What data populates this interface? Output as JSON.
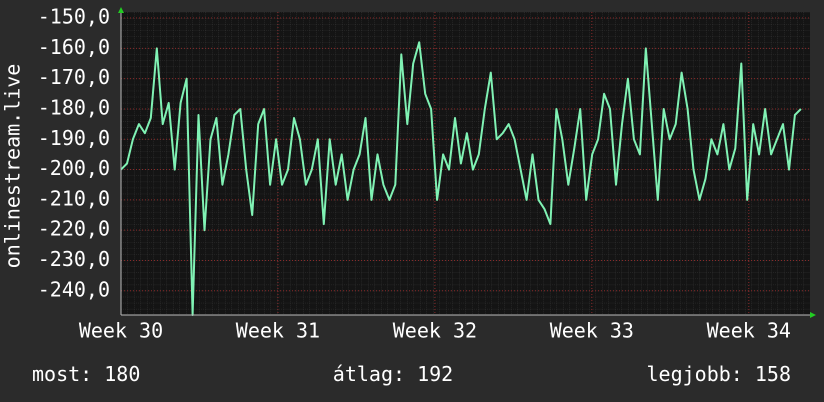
{
  "chart_data": {
    "type": "line",
    "y_label": "onlinestream.live",
    "x": [
      30,
      30.038,
      30.076,
      30.114,
      30.152,
      30.19,
      30.228,
      30.266,
      30.304,
      30.342,
      30.38,
      30.418,
      30.456,
      30.494,
      30.532,
      30.57,
      30.608,
      30.646,
      30.684,
      30.722,
      30.76,
      30.798,
      30.836,
      30.874,
      30.912,
      30.95,
      30.988,
      31.026,
      31.064,
      31.102,
      31.14,
      31.178,
      31.216,
      31.254,
      31.292,
      31.33,
      31.368,
      31.406,
      31.444,
      31.482,
      31.52,
      31.558,
      31.596,
      31.634,
      31.672,
      31.71,
      31.748,
      31.786,
      31.824,
      31.862,
      31.9,
      31.938,
      31.976,
      32.014,
      32.052,
      32.09,
      32.128,
      32.166,
      32.204,
      32.242,
      32.28,
      32.318,
      32.356,
      32.394,
      32.432,
      32.47,
      32.508,
      32.546,
      32.584,
      32.622,
      32.66,
      32.698,
      32.736,
      32.774,
      32.812,
      32.85,
      32.888,
      32.926,
      32.964,
      33.002,
      33.04,
      33.078,
      33.116,
      33.154,
      33.192,
      33.23,
      33.268,
      33.306,
      33.344,
      33.382,
      33.42,
      33.458,
      33.496,
      33.534,
      33.572,
      33.61,
      33.648,
      33.686,
      33.724,
      33.762,
      33.8,
      33.838,
      33.876,
      33.914,
      33.952,
      33.99,
      34.028,
      34.066,
      34.104,
      34.142,
      34.18,
      34.218,
      34.256,
      34.294,
      34.332
    ],
    "values": [
      -200,
      -198,
      -190,
      -185,
      -188,
      -183,
      -160,
      -185,
      -178,
      -200,
      -178,
      -170,
      -248,
      -182,
      -220,
      -190,
      -183,
      -205,
      -195,
      -182,
      -180,
      -200,
      -215,
      -185,
      -180,
      -205,
      -190,
      -205,
      -200,
      -183,
      -190,
      -205,
      -200,
      -190,
      -218,
      -190,
      -205,
      -195,
      -210,
      -200,
      -195,
      -183,
      -210,
      -195,
      -205,
      -210,
      -205,
      -162,
      -185,
      -165,
      -158,
      -175,
      -180,
      -210,
      -195,
      -200,
      -183,
      -198,
      -188,
      -200,
      -195,
      -180,
      -168,
      -190,
      -188,
      -185,
      -190,
      -200,
      -210,
      -195,
      -210,
      -213,
      -218,
      -180,
      -190,
      -205,
      -193,
      -180,
      -210,
      -195,
      -190,
      -175,
      -180,
      -205,
      -185,
      -170,
      -190,
      -195,
      -160,
      -185,
      -210,
      -180,
      -190,
      -185,
      -168,
      -180,
      -200,
      -210,
      -203,
      -190,
      -195,
      -185,
      -200,
      -193,
      -165,
      -210,
      -185,
      -195,
      -180,
      -195,
      -190,
      -185,
      -200,
      -182,
      -180
    ],
    "color": "#80f2b4",
    "xlim": [
      30,
      34.39
    ],
    "xticks": [
      {
        "value": 30,
        "label": "Week 30"
      },
      {
        "value": 31,
        "label": "Week 31"
      },
      {
        "value": 32,
        "label": "Week 32"
      },
      {
        "value": 33,
        "label": "Week 33"
      },
      {
        "value": 34,
        "label": "Week 34"
      }
    ],
    "ylim": [
      -248,
      -148
    ],
    "yticks": [
      {
        "value": -150,
        "label": "-150,0"
      },
      {
        "value": -160,
        "label": "-160,0"
      },
      {
        "value": -170,
        "label": "-170,0"
      },
      {
        "value": -180,
        "label": "-180,0"
      },
      {
        "value": -190,
        "label": "-190,0"
      },
      {
        "value": -200,
        "label": "-200,0"
      },
      {
        "value": -210,
        "label": "-210,0"
      },
      {
        "value": -220,
        "label": "-220,0"
      },
      {
        "value": -230,
        "label": "-230,0"
      },
      {
        "value": -240,
        "label": "-240,0"
      }
    ],
    "grid": true,
    "footer": [
      {
        "label": "most:",
        "value": 180
      },
      {
        "label": "átlag:",
        "value": 192
      },
      {
        "label": "legjobb:",
        "value": 158
      }
    ]
  }
}
